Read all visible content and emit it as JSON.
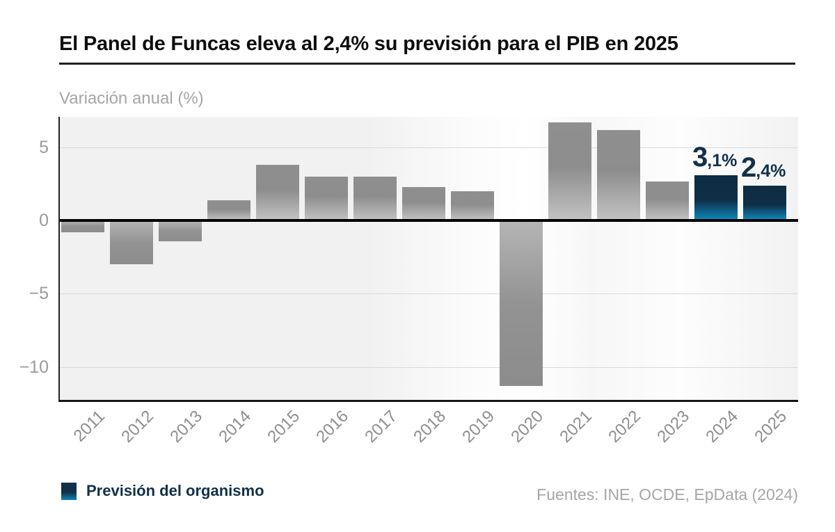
{
  "header": {
    "title": "El Panel de Funcas eleva al 2,4% su previsión para el PIB en 2025",
    "subtitle": "Variación anual (%)"
  },
  "legend": {
    "label": "Previsión del organismo"
  },
  "footer": {
    "source": "Fuentes: INE, OCDE, EpData (2024)"
  },
  "colors": {
    "bar_gray_dark": "#8d8d8d",
    "bar_gray_light": "#c3c3c3",
    "forecast_navy": "#0e2c41",
    "forecast_blue": "#0d84b5",
    "label_navy": "#12304a",
    "grid": "#d8d8d8",
    "zero_line": "#000000",
    "axis_text": "#9a9a9a",
    "title_text": "#0d0d0d",
    "muted_text": "#a6a6a6"
  },
  "chart_data": {
    "type": "bar",
    "title": "El Panel de Funcas eleva al 2,4% su previsión para el PIB en 2025",
    "ylabel": "Variación anual (%)",
    "categories": [
      "2011",
      "2012",
      "2013",
      "2014",
      "2015",
      "2016",
      "2017",
      "2018",
      "2019",
      "2020",
      "2021",
      "2022",
      "2023",
      "2024",
      "2025"
    ],
    "values": [
      -0.8,
      -3.0,
      -1.4,
      1.4,
      3.8,
      3.0,
      3.0,
      2.3,
      2.0,
      -11.3,
      6.7,
      6.2,
      2.7,
      3.1,
      2.4
    ],
    "forecast_indices": [
      13,
      14
    ],
    "point_labels": {
      "13": "3,1%",
      "14": "2,4%"
    },
    "yticks": [
      5,
      0,
      -5,
      -10
    ],
    "ylim": [
      -12.4,
      7.1
    ],
    "grid": true,
    "legend_entries": [
      "Previsión del organismo"
    ],
    "legend_position": "bottom-left"
  }
}
